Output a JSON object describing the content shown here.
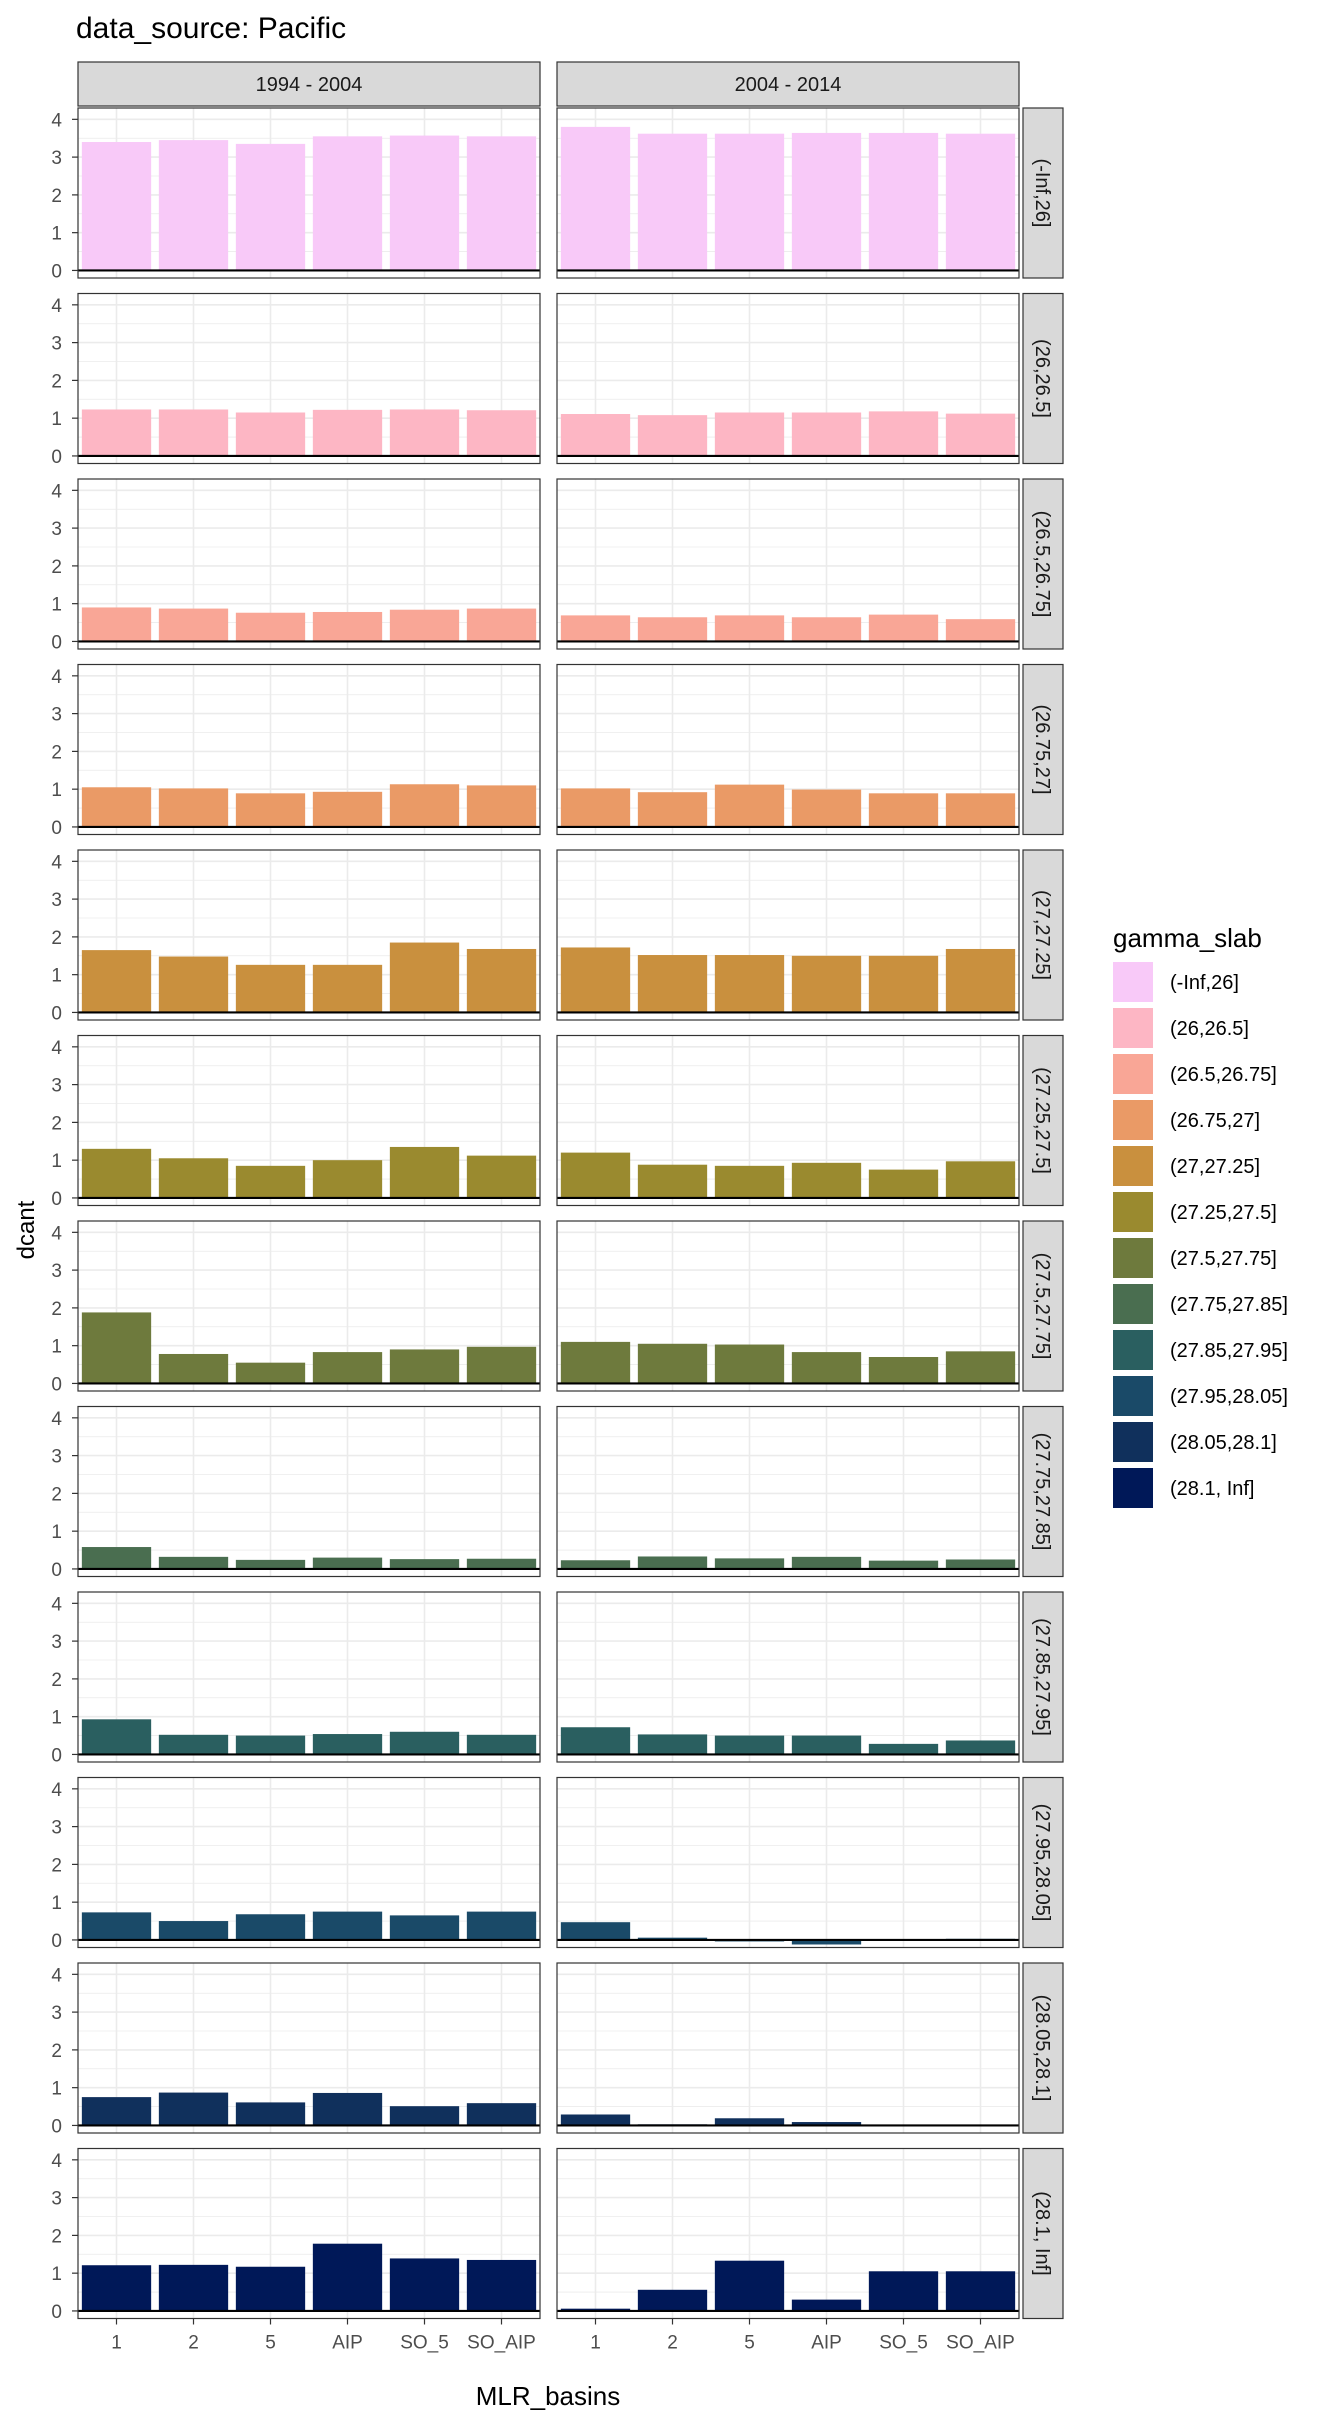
{
  "chart_data": {
    "type": "bar",
    "title": "data_source: Pacific",
    "xlabel": "MLR_basins",
    "ylabel": "dcant",
    "categories": [
      "1",
      "2",
      "5",
      "AIP",
      "SO_5",
      "SO_AIP"
    ],
    "columns": [
      "1994 - 2004",
      "2004 - 2014"
    ],
    "ylim": [
      -0.2,
      4.3
    ],
    "yticks": [
      "0",
      "1",
      "2",
      "3",
      "4"
    ],
    "grid": true,
    "legend": {
      "title": "gamma_slab",
      "placement": "right",
      "entries": [
        "(-Inf,26]",
        "(26,26.5]",
        "(26.5,26.75]",
        "(26.75,27]",
        "(27,27.25]",
        "(27.25,27.5]",
        "(27.5,27.75]",
        "(27.75,27.85]",
        "(27.85,27.95]",
        "(27.95,28.05]",
        "(28.05,28.1]",
        "(28.1, Inf]"
      ]
    },
    "colors": [
      "#F8C9F8",
      "#FDB6C4",
      "#F9A696",
      "#EA9A66",
      "#C9903E",
      "#9A8A2F",
      "#6E7A3D",
      "#4A6E50",
      "#2A5F60",
      "#1A4A68",
      "#10305C",
      "#001858"
    ],
    "rows": [
      {
        "label": "(-Inf,26]",
        "series": [
          {
            "name": "1994 - 2004",
            "values": [
              3.4,
              3.45,
              3.35,
              3.55,
              3.57,
              3.55
            ]
          },
          {
            "name": "2004 - 2014",
            "values": [
              3.8,
              3.62,
              3.62,
              3.64,
              3.64,
              3.62
            ]
          }
        ]
      },
      {
        "label": "(26,26.5]",
        "series": [
          {
            "name": "1994 - 2004",
            "values": [
              1.23,
              1.23,
              1.15,
              1.22,
              1.23,
              1.21
            ]
          },
          {
            "name": "2004 - 2014",
            "values": [
              1.11,
              1.08,
              1.15,
              1.15,
              1.18,
              1.12
            ]
          }
        ]
      },
      {
        "label": "(26.5,26.75]",
        "series": [
          {
            "name": "1994 - 2004",
            "values": [
              0.9,
              0.87,
              0.76,
              0.78,
              0.84,
              0.87
            ]
          },
          {
            "name": "2004 - 2014",
            "values": [
              0.69,
              0.64,
              0.69,
              0.64,
              0.71,
              0.59
            ]
          }
        ]
      },
      {
        "label": "(26.75,27]",
        "series": [
          {
            "name": "1994 - 2004",
            "values": [
              1.05,
              1.02,
              0.89,
              0.93,
              1.13,
              1.1
            ]
          },
          {
            "name": "2004 - 2014",
            "values": [
              1.02,
              0.92,
              1.12,
              0.99,
              0.89,
              0.89
            ]
          }
        ]
      },
      {
        "label": "(27,27.25]",
        "series": [
          {
            "name": "1994 - 2004",
            "values": [
              1.65,
              1.48,
              1.26,
              1.26,
              1.85,
              1.68
            ]
          },
          {
            "name": "2004 - 2014",
            "values": [
              1.72,
              1.52,
              1.52,
              1.5,
              1.5,
              1.68
            ]
          }
        ]
      },
      {
        "label": "(27.25,27.5]",
        "series": [
          {
            "name": "1994 - 2004",
            "values": [
              1.3,
              1.05,
              0.85,
              1.0,
              1.35,
              1.12
            ]
          },
          {
            "name": "2004 - 2014",
            "values": [
              1.2,
              0.88,
              0.85,
              0.93,
              0.75,
              0.97
            ]
          }
        ]
      },
      {
        "label": "(27.5,27.75]",
        "series": [
          {
            "name": "1994 - 2004",
            "values": [
              1.88,
              0.78,
              0.55,
              0.83,
              0.9,
              0.97
            ]
          },
          {
            "name": "2004 - 2014",
            "values": [
              1.1,
              1.05,
              1.03,
              0.83,
              0.7,
              0.85
            ]
          }
        ]
      },
      {
        "label": "(27.75,27.85]",
        "series": [
          {
            "name": "1994 - 2004",
            "values": [
              0.58,
              0.32,
              0.24,
              0.3,
              0.26,
              0.27
            ]
          },
          {
            "name": "2004 - 2014",
            "values": [
              0.23,
              0.33,
              0.28,
              0.32,
              0.22,
              0.25
            ]
          }
        ]
      },
      {
        "label": "(27.85,27.95]",
        "series": [
          {
            "name": "1994 - 2004",
            "values": [
              0.93,
              0.52,
              0.5,
              0.54,
              0.6,
              0.52
            ]
          },
          {
            "name": "2004 - 2014",
            "values": [
              0.72,
              0.53,
              0.5,
              0.5,
              0.28,
              0.37
            ]
          }
        ]
      },
      {
        "label": "(27.95,28.05]",
        "series": [
          {
            "name": "1994 - 2004",
            "values": [
              0.73,
              0.5,
              0.68,
              0.75,
              0.65,
              0.75
            ]
          },
          {
            "name": "2004 - 2014",
            "values": [
              0.47,
              0.06,
              -0.04,
              -0.12,
              -0.02,
              0.03
            ]
          }
        ]
      },
      {
        "label": "(28.05,28.1]",
        "series": [
          {
            "name": "1994 - 2004",
            "values": [
              0.75,
              0.87,
              0.61,
              0.86,
              0.51,
              0.59
            ]
          },
          {
            "name": "2004 - 2014",
            "values": [
              0.29,
              0.03,
              0.19,
              0.09,
              0.02,
              0.01
            ]
          }
        ]
      },
      {
        "label": "(28.1, Inf]",
        "series": [
          {
            "name": "1994 - 2004",
            "values": [
              1.21,
              1.22,
              1.17,
              1.78,
              1.39,
              1.35
            ]
          },
          {
            "name": "2004 - 2014",
            "values": [
              0.06,
              0.56,
              1.33,
              0.3,
              1.05,
              1.05
            ]
          }
        ]
      }
    ]
  }
}
